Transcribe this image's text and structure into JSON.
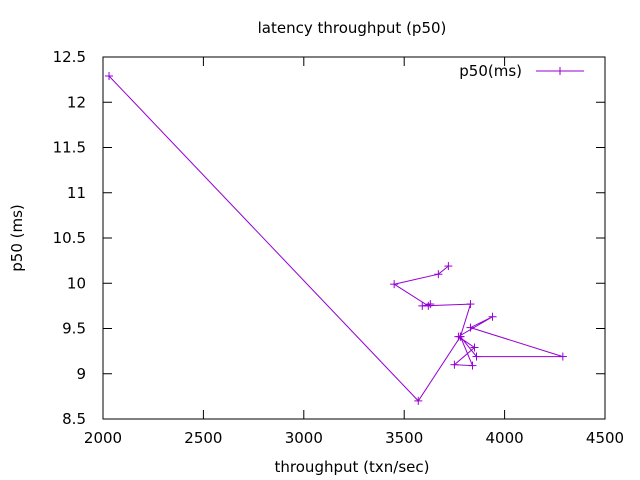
{
  "chart_data": {
    "type": "line",
    "title": "latency throughput (p50)",
    "xlabel": "throughput (txn/sec)",
    "ylabel": "p50 (ms)",
    "xlim": [
      2000,
      4500
    ],
    "ylim": [
      8.5,
      12.5
    ],
    "x_ticks": [
      "2000",
      "2500",
      "3000",
      "3500",
      "4000",
      "4500"
    ],
    "y_ticks": [
      "8.5",
      "9",
      "9.5",
      "10",
      "10.5",
      "11",
      "11.5",
      "12",
      "12.5"
    ],
    "grid": false,
    "legend_position": "top-right",
    "series": [
      {
        "name": "p50(ms)",
        "color": "#9400d3",
        "marker": "plus",
        "x": [
          2030,
          3570,
          3780,
          3860,
          4290,
          3830,
          3940,
          3770,
          3850,
          3750,
          3840,
          3780,
          3830,
          3590,
          3630,
          3620,
          3450,
          3670,
          3720
        ],
        "y": [
          12.29,
          8.7,
          9.41,
          9.19,
          9.19,
          9.51,
          9.63,
          9.41,
          9.29,
          9.1,
          9.09,
          9.41,
          9.77,
          9.75,
          9.77,
          9.75,
          9.99,
          10.1,
          10.19
        ]
      }
    ]
  }
}
